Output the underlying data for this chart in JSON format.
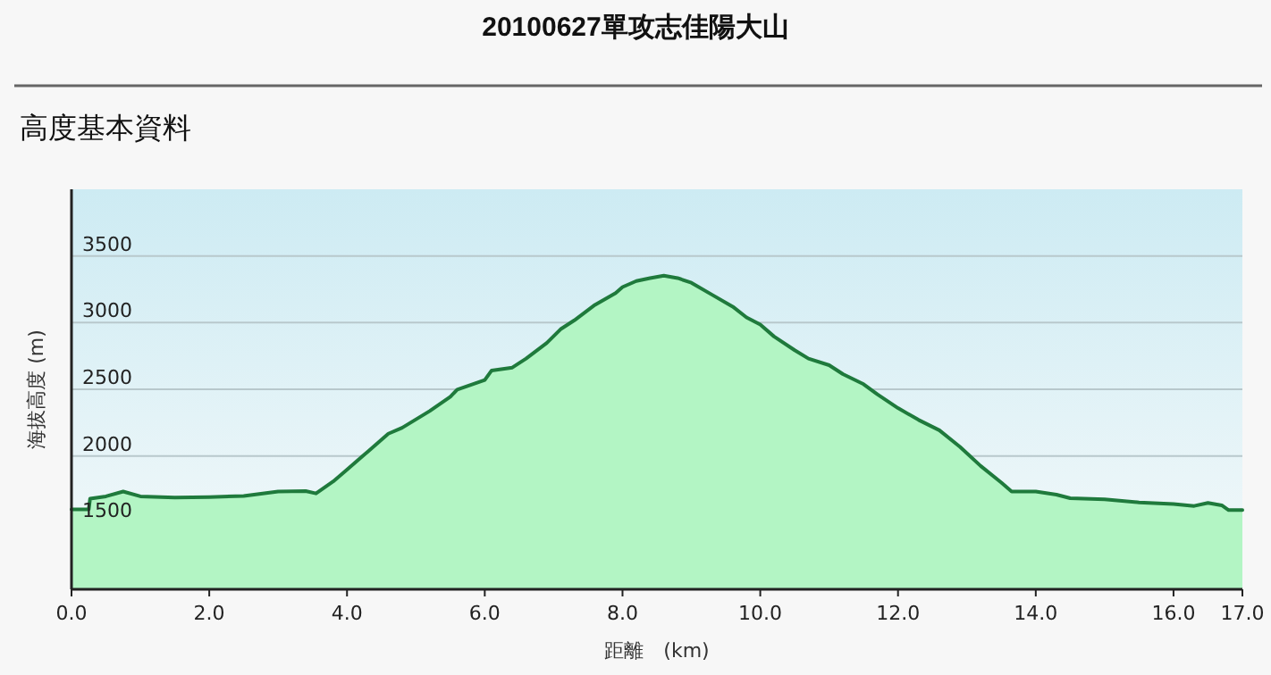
{
  "chart_data": {
    "type": "area",
    "title": "20100627單攻志佳陽大山",
    "subtitle": "高度基本資料",
    "xlabel": "距離　(km)",
    "ylabel": "海拔高度 (m)",
    "x": [
      0,
      0.25,
      0.27,
      0.5,
      0.75,
      1.0,
      1.5,
      2.0,
      2.5,
      3.0,
      3.4,
      3.55,
      3.8,
      4.0,
      4.3,
      4.6,
      4.8,
      5.2,
      5.5,
      5.6,
      6.0,
      6.1,
      6.4,
      6.6,
      6.9,
      7.1,
      7.3,
      7.6,
      7.9,
      8.0,
      8.2,
      8.4,
      8.6,
      8.8,
      9.0,
      9.3,
      9.6,
      9.8,
      10.0,
      10.2,
      10.5,
      10.7,
      11.0,
      11.2,
      11.5,
      11.7,
      12.0,
      12.3,
      12.6,
      12.9,
      13.2,
      13.5,
      13.65,
      14.0,
      14.3,
      14.5,
      15.0,
      15.5,
      16.0,
      16.3,
      16.5,
      16.7,
      16.8,
      17.0
    ],
    "series": [
      {
        "color": "#1f7a3c",
        "values": [
          1600,
          1600,
          1680,
          1697,
          1733,
          1697,
          1688,
          1692,
          1700,
          1733,
          1737,
          1719,
          1809,
          1898,
          2032,
          2167,
          2211,
          2337,
          2444,
          2498,
          2569,
          2641,
          2663,
          2730,
          2847,
          2950,
          3017,
          3133,
          3222,
          3267,
          3312,
          3334,
          3352,
          3334,
          3299,
          3209,
          3120,
          3039,
          2985,
          2896,
          2793,
          2730,
          2681,
          2614,
          2538,
          2462,
          2359,
          2270,
          2193,
          2068,
          1925,
          1800,
          1733,
          1733,
          1710,
          1683,
          1674,
          1652,
          1639,
          1625,
          1648,
          1630,
          1594,
          1594
        ]
      }
    ],
    "xlim": [
      0,
      17
    ],
    "xticks": [
      {
        "value": 0,
        "label": "0.0"
      },
      {
        "value": 2,
        "label": "2.0"
      },
      {
        "value": 4,
        "label": "4.0"
      },
      {
        "value": 6,
        "label": "6.0"
      },
      {
        "value": 8,
        "label": "8.0"
      },
      {
        "value": 10,
        "label": "10.0"
      },
      {
        "value": 12,
        "label": "12.0"
      },
      {
        "value": 14,
        "label": "14.0"
      },
      {
        "value": 16,
        "label": "16.0"
      },
      {
        "value": 17,
        "label": "17.0"
      }
    ],
    "ylim": [
      1000,
      4000
    ],
    "yticks": [
      1500,
      2000,
      2500,
      3000,
      3500
    ],
    "grid": "y"
  }
}
